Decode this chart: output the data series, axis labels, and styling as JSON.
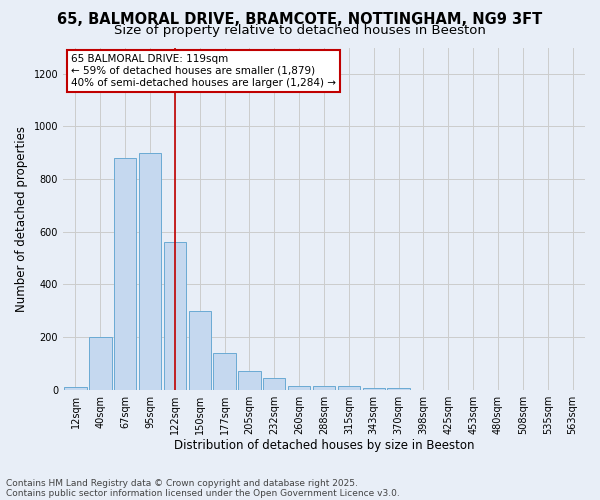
{
  "title_line1": "65, BALMORAL DRIVE, BRAMCOTE, NOTTINGHAM, NG9 3FT",
  "title_line2": "Size of property relative to detached houses in Beeston",
  "xlabel": "Distribution of detached houses by size in Beeston",
  "ylabel": "Number of detached properties",
  "categories": [
    "12sqm",
    "40sqm",
    "67sqm",
    "95sqm",
    "122sqm",
    "150sqm",
    "177sqm",
    "205sqm",
    "232sqm",
    "260sqm",
    "288sqm",
    "315sqm",
    "343sqm",
    "370sqm",
    "398sqm",
    "425sqm",
    "453sqm",
    "480sqm",
    "508sqm",
    "535sqm",
    "563sqm"
  ],
  "values": [
    10,
    200,
    880,
    900,
    560,
    300,
    140,
    70,
    45,
    15,
    15,
    15,
    5,
    5,
    0,
    0,
    0,
    0,
    0,
    0,
    0
  ],
  "bar_color": "#c5d8ef",
  "bar_edge_color": "#6aaad4",
  "highlight_index": 4,
  "highlight_color": "#c00000",
  "annotation_text": "65 BALMORAL DRIVE: 119sqm\n← 59% of detached houses are smaller (1,879)\n40% of semi-detached houses are larger (1,284) →",
  "annotation_box_color": "#ffffff",
  "annotation_box_edge_color": "#c00000",
  "ylim": [
    0,
    1300
  ],
  "yticks": [
    0,
    200,
    400,
    600,
    800,
    1000,
    1200
  ],
  "grid_color": "#cccccc",
  "background_color": "#e8eef7",
  "plot_bg_color": "#e8eef7",
  "footer_line1": "Contains HM Land Registry data © Crown copyright and database right 2025.",
  "footer_line2": "Contains public sector information licensed under the Open Government Licence v3.0.",
  "title_fontsize": 10.5,
  "subtitle_fontsize": 9.5,
  "axis_label_fontsize": 8.5,
  "tick_fontsize": 7,
  "annotation_fontsize": 7.5,
  "footer_fontsize": 6.5
}
